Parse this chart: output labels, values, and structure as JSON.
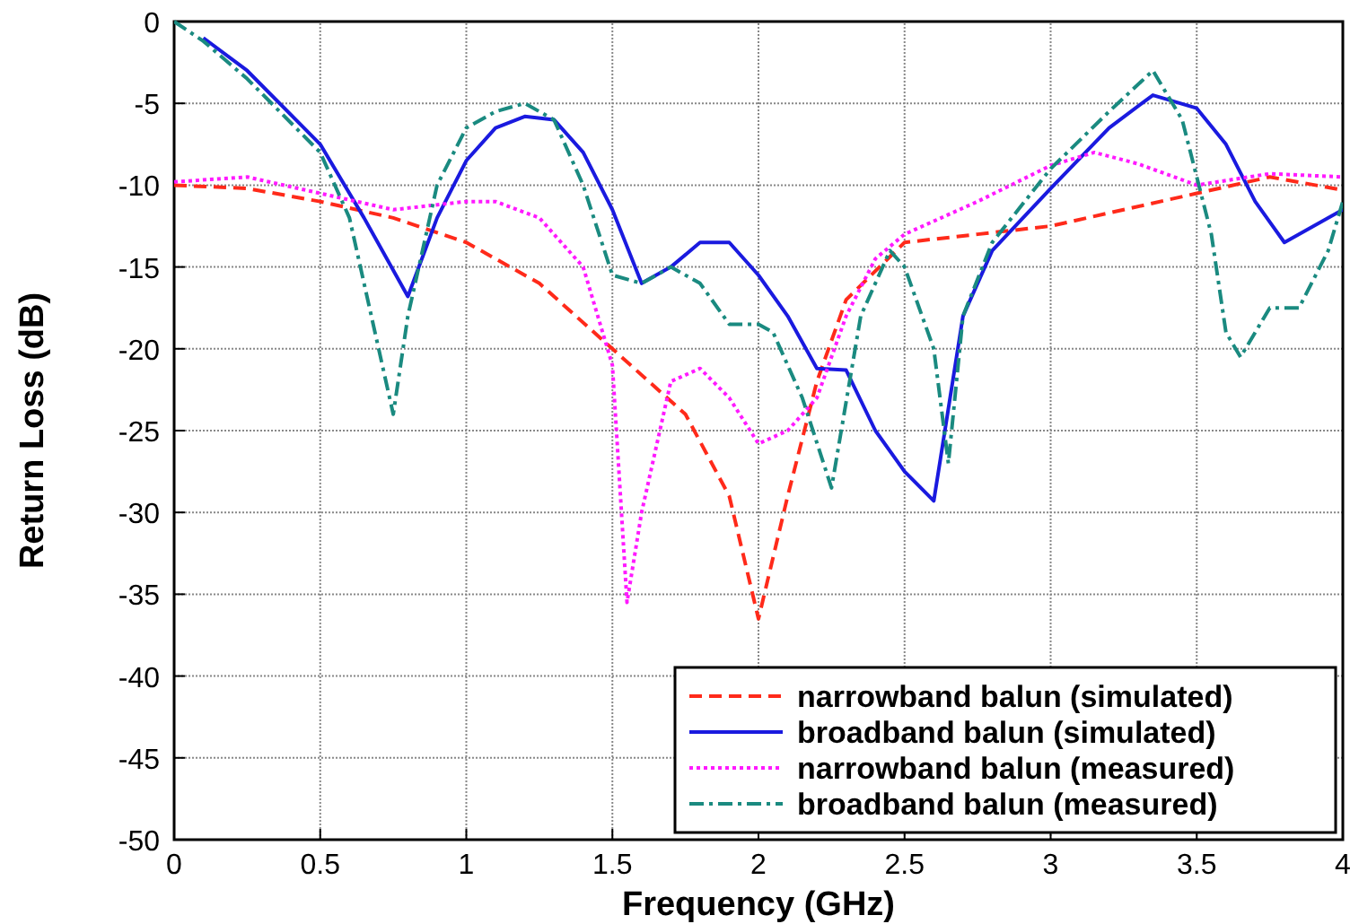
{
  "chart_data": {
    "type": "line",
    "xlabel": "Frequency (GHz)",
    "ylabel": "Return Loss (dB)",
    "xlim": [
      0,
      4
    ],
    "ylim": [
      -50,
      0
    ],
    "xticks": [
      0,
      0.5,
      1,
      1.5,
      2,
      2.5,
      3,
      3.5,
      4
    ],
    "yticks": [
      -50,
      -45,
      -40,
      -35,
      -30,
      -25,
      -20,
      -15,
      -10,
      -5,
      0
    ],
    "grid": true,
    "legend": "bottom right",
    "series": [
      {
        "name": "narrowband balun (simulated)",
        "color": "#ff2a1a",
        "line_style": "dashed",
        "x": [
          0,
          0.25,
          0.5,
          0.75,
          1,
          1.25,
          1.5,
          1.75,
          1.9,
          2,
          2.1,
          2.2,
          2.3,
          2.5,
          2.75,
          3,
          3.25,
          3.5,
          3.75,
          4
        ],
        "values": [
          -10,
          -10.2,
          -11,
          -12,
          -13.5,
          -16,
          -20,
          -24,
          -29,
          -36.5,
          -29,
          -22,
          -17,
          -13.5,
          -13,
          -12.5,
          -11.5,
          -10.5,
          -9.5,
          -10.3
        ]
      },
      {
        "name": "broadband balun (simulated)",
        "color": "#1a1adf",
        "line_style": "solid",
        "x": [
          0.1,
          0.25,
          0.5,
          0.65,
          0.8,
          0.9,
          1,
          1.1,
          1.2,
          1.3,
          1.4,
          1.5,
          1.6,
          1.7,
          1.8,
          1.9,
          2,
          2.1,
          2.2,
          2.3,
          2.4,
          2.5,
          2.6,
          2.7,
          2.8,
          3,
          3.2,
          3.35,
          3.5,
          3.6,
          3.7,
          3.8,
          4
        ],
        "values": [
          -1,
          -3,
          -7.5,
          -12,
          -16.8,
          -12,
          -8.5,
          -6.5,
          -5.8,
          -6,
          -8,
          -11.5,
          -16,
          -15,
          -13.5,
          -13.5,
          -15.5,
          -18,
          -21.2,
          -21.3,
          -25,
          -27.5,
          -29.3,
          -18,
          -14,
          -10.2,
          -6.5,
          -4.5,
          -5.3,
          -7.5,
          -11,
          -13.5,
          -11.5
        ]
      },
      {
        "name": "narrowband balun (measured)",
        "color": "#ff1aff",
        "line_style": "dotted",
        "x": [
          0,
          0.25,
          0.5,
          0.75,
          1,
          1.1,
          1.25,
          1.4,
          1.5,
          1.55,
          1.6,
          1.7,
          1.8,
          1.9,
          2,
          2.1,
          2.2,
          2.3,
          2.4,
          2.5,
          2.75,
          3,
          3.15,
          3.3,
          3.5,
          3.75,
          4
        ],
        "values": [
          -9.8,
          -9.5,
          -10.5,
          -11.5,
          -11,
          -11,
          -12,
          -15,
          -21,
          -35.5,
          -30,
          -22,
          -21.2,
          -23,
          -25.8,
          -25,
          -23,
          -18,
          -14.5,
          -13,
          -11,
          -8.8,
          -8,
          -8.7,
          -10,
          -9.3,
          -9.5
        ]
      },
      {
        "name": "broadband balun (measured)",
        "color": "#1a8a80",
        "line_style": "dashdot",
        "x": [
          0,
          0.1,
          0.25,
          0.5,
          0.6,
          0.7,
          0.75,
          0.8,
          0.9,
          1,
          1.1,
          1.2,
          1.3,
          1.4,
          1.5,
          1.6,
          1.7,
          1.8,
          1.9,
          2,
          2.05,
          2.15,
          2.25,
          2.35,
          2.45,
          2.5,
          2.6,
          2.65,
          2.7,
          2.8,
          3,
          3.2,
          3.35,
          3.45,
          3.55,
          3.6,
          3.65,
          3.75,
          3.85,
          3.95,
          4
        ],
        "values": [
          0,
          -1.2,
          -3.5,
          -8,
          -12,
          -20,
          -24,
          -18,
          -10,
          -6.5,
          -5.5,
          -5,
          -6,
          -10,
          -15.5,
          -16,
          -15,
          -16,
          -18.5,
          -18.5,
          -19,
          -23,
          -28.5,
          -18,
          -14,
          -15,
          -20,
          -27,
          -18,
          -13.5,
          -9,
          -5.5,
          -3,
          -6,
          -13,
          -19,
          -20.5,
          -17.5,
          -17.5,
          -14,
          -11
        ]
      }
    ]
  }
}
